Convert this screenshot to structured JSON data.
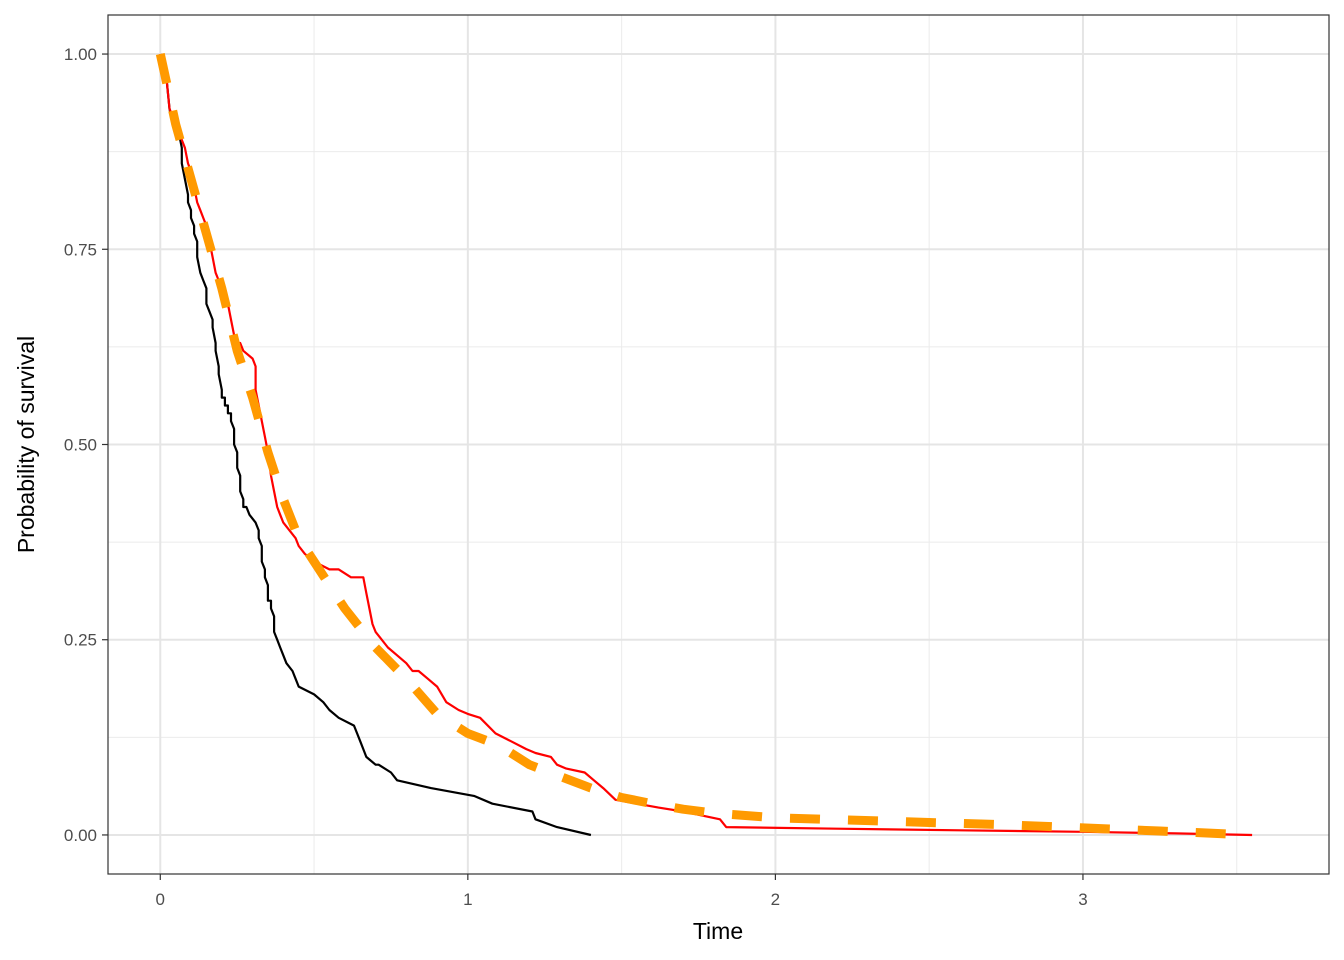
{
  "chart_data": {
    "type": "line",
    "title": "",
    "xlabel": "Time",
    "ylabel": "Probability of survival",
    "xlim": [
      -0.17,
      3.8
    ],
    "ylim": [
      -0.05,
      1.05
    ],
    "x_ticks": [
      0,
      1,
      2,
      3
    ],
    "x_tick_labels": [
      "0",
      "1",
      "2",
      "3"
    ],
    "y_ticks": [
      0,
      0.25,
      0.5,
      0.75,
      1
    ],
    "y_tick_labels": [
      "0.00",
      "0.25",
      "0.50",
      "0.75",
      "1.00"
    ],
    "grid": true,
    "legend": "none",
    "series": [
      {
        "color": "#000000",
        "line_style": "solid",
        "points": [
          [
            0,
            1.0
          ],
          [
            0.02,
            0.97
          ],
          [
            0.03,
            0.93
          ],
          [
            0.04,
            0.91
          ],
          [
            0.05,
            0.91
          ],
          [
            0.06,
            0.9
          ],
          [
            0.07,
            0.88
          ],
          [
            0.07,
            0.86
          ],
          [
            0.08,
            0.84
          ],
          [
            0.09,
            0.82
          ],
          [
            0.09,
            0.81
          ],
          [
            0.1,
            0.8
          ],
          [
            0.1,
            0.79
          ],
          [
            0.11,
            0.78
          ],
          [
            0.11,
            0.77
          ],
          [
            0.12,
            0.76
          ],
          [
            0.12,
            0.74
          ],
          [
            0.13,
            0.72
          ],
          [
            0.14,
            0.71
          ],
          [
            0.15,
            0.7
          ],
          [
            0.15,
            0.68
          ],
          [
            0.16,
            0.67
          ],
          [
            0.17,
            0.66
          ],
          [
            0.17,
            0.65
          ],
          [
            0.18,
            0.63
          ],
          [
            0.18,
            0.62
          ],
          [
            0.19,
            0.6
          ],
          [
            0.19,
            0.59
          ],
          [
            0.2,
            0.57
          ],
          [
            0.2,
            0.56
          ],
          [
            0.21,
            0.56
          ],
          [
            0.21,
            0.55
          ],
          [
            0.22,
            0.55
          ],
          [
            0.22,
            0.54
          ],
          [
            0.23,
            0.54
          ],
          [
            0.23,
            0.53
          ],
          [
            0.24,
            0.52
          ],
          [
            0.24,
            0.51
          ],
          [
            0.24,
            0.5
          ],
          [
            0.25,
            0.49
          ],
          [
            0.25,
            0.48
          ],
          [
            0.25,
            0.47
          ],
          [
            0.26,
            0.46
          ],
          [
            0.26,
            0.45
          ],
          [
            0.26,
            0.44
          ],
          [
            0.27,
            0.43
          ],
          [
            0.27,
            0.42
          ],
          [
            0.28,
            0.42
          ],
          [
            0.29,
            0.41
          ],
          [
            0.31,
            0.4
          ],
          [
            0.32,
            0.39
          ],
          [
            0.32,
            0.38
          ],
          [
            0.33,
            0.37
          ],
          [
            0.33,
            0.36
          ],
          [
            0.33,
            0.35
          ],
          [
            0.34,
            0.34
          ],
          [
            0.34,
            0.33
          ],
          [
            0.35,
            0.32
          ],
          [
            0.35,
            0.31
          ],
          [
            0.35,
            0.3
          ],
          [
            0.36,
            0.3
          ],
          [
            0.36,
            0.29
          ],
          [
            0.37,
            0.28
          ],
          [
            0.37,
            0.27
          ],
          [
            0.37,
            0.26
          ],
          [
            0.38,
            0.25
          ],
          [
            0.39,
            0.24
          ],
          [
            0.4,
            0.23
          ],
          [
            0.41,
            0.22
          ],
          [
            0.43,
            0.21
          ],
          [
            0.44,
            0.2
          ],
          [
            0.45,
            0.19
          ],
          [
            0.5,
            0.18
          ],
          [
            0.53,
            0.17
          ],
          [
            0.55,
            0.16
          ],
          [
            0.58,
            0.15
          ],
          [
            0.63,
            0.14
          ],
          [
            0.64,
            0.13
          ],
          [
            0.65,
            0.12
          ],
          [
            0.66,
            0.11
          ],
          [
            0.67,
            0.1
          ],
          [
            0.7,
            0.09
          ],
          [
            0.71,
            0.09
          ],
          [
            0.75,
            0.08
          ],
          [
            0.77,
            0.07
          ],
          [
            0.88,
            0.06
          ],
          [
            1.02,
            0.05
          ],
          [
            1.08,
            0.04
          ],
          [
            1.21,
            0.03
          ],
          [
            1.22,
            0.02
          ],
          [
            1.29,
            0.01
          ],
          [
            1.4,
            0.0
          ]
        ]
      },
      {
        "color": "#ff0000",
        "line_style": "solid",
        "points": [
          [
            0,
            1.0
          ],
          [
            0.02,
            0.97
          ],
          [
            0.03,
            0.93
          ],
          [
            0.04,
            0.92
          ],
          [
            0.05,
            0.92
          ],
          [
            0.06,
            0.91
          ],
          [
            0.07,
            0.89
          ],
          [
            0.08,
            0.88
          ],
          [
            0.09,
            0.86
          ],
          [
            0.1,
            0.85
          ],
          [
            0.11,
            0.83
          ],
          [
            0.12,
            0.81
          ],
          [
            0.13,
            0.8
          ],
          [
            0.14,
            0.79
          ],
          [
            0.15,
            0.78
          ],
          [
            0.16,
            0.76
          ],
          [
            0.17,
            0.74
          ],
          [
            0.18,
            0.72
          ],
          [
            0.19,
            0.71
          ],
          [
            0.2,
            0.7
          ],
          [
            0.22,
            0.68
          ],
          [
            0.23,
            0.66
          ],
          [
            0.24,
            0.64
          ],
          [
            0.25,
            0.63
          ],
          [
            0.26,
            0.63
          ],
          [
            0.27,
            0.62
          ],
          [
            0.3,
            0.61
          ],
          [
            0.31,
            0.6
          ],
          [
            0.31,
            0.57
          ],
          [
            0.32,
            0.55
          ],
          [
            0.33,
            0.53
          ],
          [
            0.34,
            0.51
          ],
          [
            0.35,
            0.49
          ],
          [
            0.36,
            0.46
          ],
          [
            0.37,
            0.44
          ],
          [
            0.38,
            0.42
          ],
          [
            0.39,
            0.41
          ],
          [
            0.4,
            0.4
          ],
          [
            0.42,
            0.39
          ],
          [
            0.44,
            0.38
          ],
          [
            0.45,
            0.37
          ],
          [
            0.47,
            0.36
          ],
          [
            0.5,
            0.35
          ],
          [
            0.55,
            0.34
          ],
          [
            0.58,
            0.34
          ],
          [
            0.62,
            0.33
          ],
          [
            0.66,
            0.33
          ],
          [
            0.67,
            0.31
          ],
          [
            0.68,
            0.29
          ],
          [
            0.69,
            0.27
          ],
          [
            0.7,
            0.26
          ],
          [
            0.74,
            0.24
          ],
          [
            0.77,
            0.23
          ],
          [
            0.8,
            0.22
          ],
          [
            0.82,
            0.21
          ],
          [
            0.84,
            0.21
          ],
          [
            0.87,
            0.2
          ],
          [
            0.9,
            0.19
          ],
          [
            0.93,
            0.17
          ],
          [
            0.97,
            0.16
          ],
          [
            1.0,
            0.155
          ],
          [
            1.04,
            0.15
          ],
          [
            1.09,
            0.13
          ],
          [
            1.14,
            0.12
          ],
          [
            1.19,
            0.11
          ],
          [
            1.22,
            0.105
          ],
          [
            1.27,
            0.1
          ],
          [
            1.29,
            0.09
          ],
          [
            1.32,
            0.085
          ],
          [
            1.38,
            0.08
          ],
          [
            1.41,
            0.07
          ],
          [
            1.44,
            0.06
          ],
          [
            1.48,
            0.045
          ],
          [
            1.55,
            0.04
          ],
          [
            1.62,
            0.035
          ],
          [
            1.7,
            0.03
          ],
          [
            1.76,
            0.025
          ],
          [
            1.82,
            0.02
          ],
          [
            1.84,
            0.01
          ],
          [
            2.2,
            0.008
          ],
          [
            2.6,
            0.006
          ],
          [
            3.0,
            0.004
          ],
          [
            3.3,
            0.002
          ],
          [
            3.55,
            0.0
          ]
        ]
      },
      {
        "color": "#ff9a00",
        "line_style": "dashed",
        "points": [
          [
            0.0,
            1.0
          ],
          [
            0.05,
            0.91
          ],
          [
            0.1,
            0.84
          ],
          [
            0.15,
            0.77
          ],
          [
            0.2,
            0.7
          ],
          [
            0.25,
            0.62
          ],
          [
            0.3,
            0.56
          ],
          [
            0.35,
            0.49
          ],
          [
            0.4,
            0.43
          ],
          [
            0.45,
            0.38
          ],
          [
            0.5,
            0.35
          ],
          [
            0.55,
            0.32
          ],
          [
            0.6,
            0.29
          ],
          [
            0.7,
            0.24
          ],
          [
            0.8,
            0.2
          ],
          [
            0.9,
            0.155
          ],
          [
            1.0,
            0.13
          ],
          [
            1.1,
            0.115
          ],
          [
            1.2,
            0.09
          ],
          [
            1.3,
            0.075
          ],
          [
            1.4,
            0.06
          ],
          [
            1.5,
            0.048
          ],
          [
            1.6,
            0.04
          ],
          [
            1.7,
            0.033
          ],
          [
            1.8,
            0.028
          ],
          [
            2.0,
            0.022
          ],
          [
            2.25,
            0.019
          ],
          [
            2.5,
            0.016
          ],
          [
            2.75,
            0.013
          ],
          [
            3.0,
            0.009
          ],
          [
            3.25,
            0.005
          ],
          [
            3.55,
            0.0
          ]
        ]
      }
    ]
  }
}
